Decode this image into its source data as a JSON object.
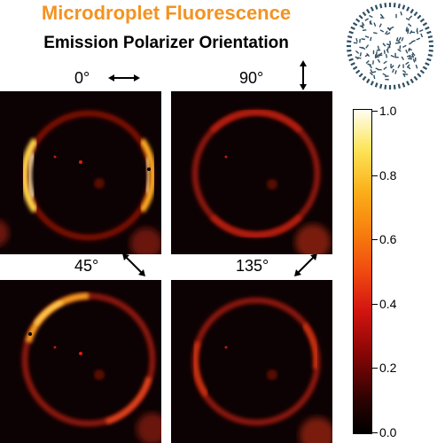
{
  "title": "Microdroplet Fluorescence",
  "subtitle": "Emission Polarizer Orientation",
  "panels": [
    {
      "angle": "0°"
    },
    {
      "angle": "90°"
    },
    {
      "angle": "45°"
    },
    {
      "angle": "135°"
    }
  ],
  "colorbar": {
    "ticks": [
      "1.0",
      "0.8",
      "0.6",
      "0.4",
      "0.2",
      "0.0"
    ],
    "colors": [
      "#000000",
      "#8a0606",
      "#f04a10",
      "#fbb01a",
      "#fffdf2"
    ]
  },
  "colors": {
    "title": "#f39322",
    "droplet": "#2f4f62"
  }
}
